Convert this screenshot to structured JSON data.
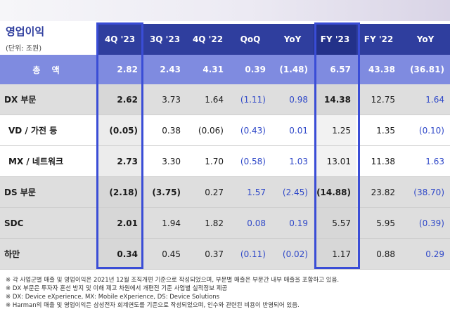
{
  "title": "영업이익",
  "unit": "(단위: 조원)",
  "columns": [
    "4Q '23",
    "3Q '23",
    "4Q '22",
    "QoQ",
    "YoY",
    "FY '23",
    "FY '22",
    "YoY"
  ],
  "rows": [
    {
      "label": "총 액",
      "values": [
        "2.82",
        "2.43",
        "4.31",
        "0.39",
        "(1.48)",
        "6.57",
        "43.38",
        "(36.81)"
      ]
    },
    {
      "label": "DX 부문",
      "values": [
        "2.62",
        "3.73",
        "1.64",
        "(1.11)",
        "0.98",
        "14.38",
        "12.75",
        "1.64"
      ]
    },
    {
      "label": "VD / 가전 등",
      "values": [
        "(0.05)",
        "0.38",
        "(0.06)",
        "(0.43)",
        "0.01",
        "1.25",
        "1.35",
        "(0.10)"
      ]
    },
    {
      "label": "MX / 네트워크",
      "values": [
        "2.73",
        "3.30",
        "1.70",
        "(0.58)",
        "1.03",
        "13.01",
        "11.38",
        "1.63"
      ]
    },
    {
      "label": "DS 부문",
      "values": [
        "(2.18)",
        "(3.75)",
        "0.27",
        "1.57",
        "(2.45)",
        "(14.88)",
        "23.82",
        "(38.70)"
      ]
    },
    {
      "label": "SDC",
      "values": [
        "2.01",
        "1.94",
        "1.82",
        "0.08",
        "0.19",
        "5.57",
        "5.95",
        "(0.39)"
      ]
    },
    {
      "label": "하만",
      "values": [
        "0.34",
        "0.45",
        "0.37",
        "(0.11)",
        "(0.02)",
        "1.17",
        "0.88",
        "0.29"
      ]
    }
  ],
  "notes": [
    "※ 각 사업군별 매출 및 영업이익은 2021년 12월 조직개편 기준으로 작성되었으며, 부문별 매출은 부문간 내부 매출을 포함하고 있음.",
    "※ DX 부문은 투자자 혼선 방지 및 이해 제고 차원에서 개편전 기준 사업별 실적정보 제공",
    "※ DX: Device eXperience, MX: Mobile eXperience, DS: Device Solutions",
    "※ Harman의 매출 및 영업이익은 삼성전자 회계연도를 기준으로 작성되었으며, 인수와 관련된 비용이 반영되어 있음."
  ],
  "colors": {
    "header": "#2f3e9e",
    "total_row": "#7f8be0",
    "highlight_box": "#3a4dd6",
    "negative_text": "#2f48c8"
  }
}
